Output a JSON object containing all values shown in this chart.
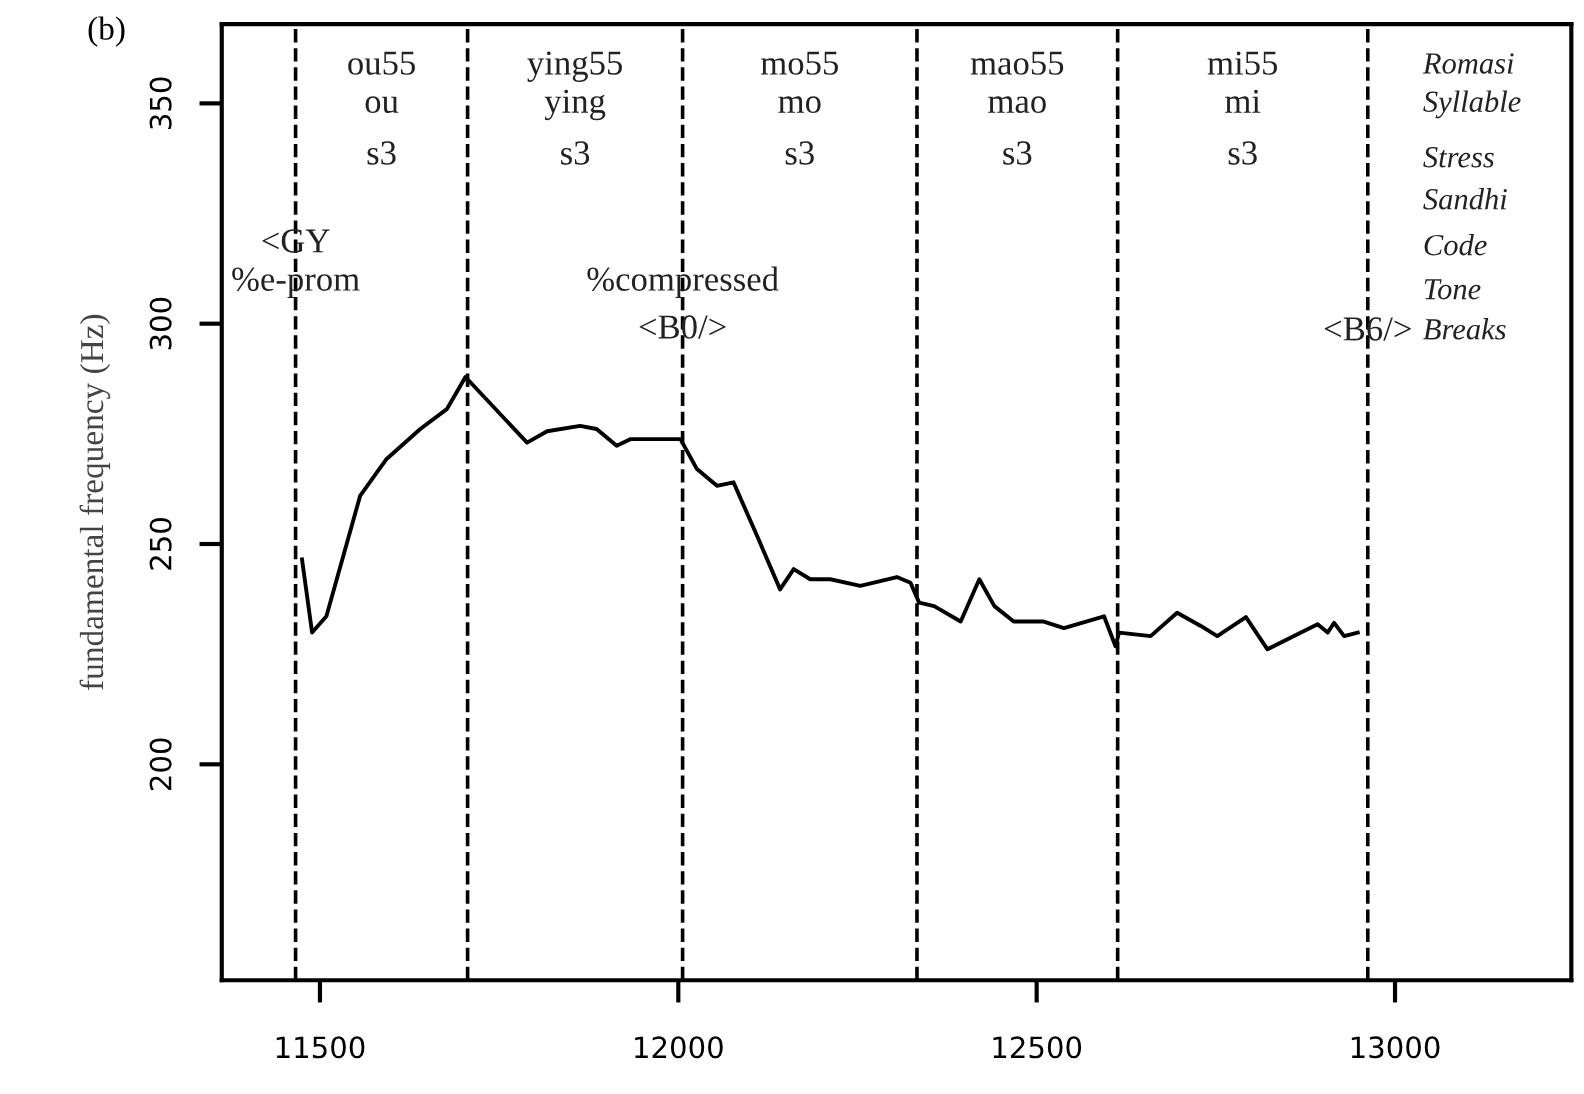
{
  "chart_data": {
    "type": "line",
    "title": "(b)",
    "ylabel": "fundamental frequency (Hz)",
    "x": [
      11475,
      11489,
      11509,
      11556,
      11593,
      11640,
      11677,
      11703,
      11789,
      11817,
      11863,
      11886,
      11914,
      11933,
      12003,
      12026,
      12054,
      12077,
      12110,
      12142,
      12161,
      12184,
      12212,
      12254,
      12305,
      12324,
      12336,
      12357,
      12394,
      12420,
      12441,
      12468,
      12510,
      12538,
      12594,
      12610,
      12615,
      12659,
      12696,
      12729,
      12752,
      12792,
      12822,
      12859,
      12892,
      12906,
      12915,
      12929,
      12948
    ],
    "series": [
      {
        "color": "#000000",
        "values": [
          246.5,
          229.9,
          233.6,
          260.9,
          269.3,
          276.1,
          280.6,
          287.9,
          273.0,
          275.6,
          276.8,
          276.1,
          272.3,
          273.8,
          273.8,
          267.0,
          263.2,
          264.0,
          251.8,
          239.7,
          244.3,
          242.0,
          242.0,
          240.5,
          242.5,
          241.2,
          236.7,
          235.9,
          232.4,
          242.0,
          235.9,
          232.4,
          232.4,
          230.9,
          233.6,
          226.8,
          229.9,
          229.1,
          234.4,
          231.4,
          229.1,
          233.4,
          226.1,
          229.1,
          231.8,
          229.9,
          232.1,
          229.1,
          229.9
        ]
      }
    ],
    "xlim": [
      11363,
      13246
    ],
    "ylim": [
      151,
      368
    ],
    "xticks": [
      11500,
      12000,
      12500,
      13000
    ],
    "yticks": [
      200,
      250,
      300,
      350
    ],
    "grid": false,
    "legend": false,
    "line_style": "solid",
    "marker": "none",
    "ref_lines": [
      {
        "axis": "x",
        "value": 11466,
        "color": "#000000",
        "line_style": "dashed"
      },
      {
        "axis": "x",
        "value": 11706,
        "color": "#000000",
        "line_style": "dashed"
      },
      {
        "axis": "x",
        "value": 12006,
        "color": "#000000",
        "line_style": "dashed"
      },
      {
        "axis": "x",
        "value": 12333,
        "color": "#000000",
        "line_style": "dashed"
      },
      {
        "axis": "x",
        "value": 12613,
        "color": "#000000",
        "line_style": "dashed"
      },
      {
        "axis": "x",
        "value": 12962,
        "color": "#000000",
        "line_style": "dashed"
      }
    ],
    "annotations": [
      "ou55",
      "ou",
      "s3",
      "ying55",
      "ying",
      "s3",
      "mo55",
      "mo",
      "s3",
      "mao55",
      "mao",
      "s3",
      "mi55",
      "mi",
      "s3",
      "<GY",
      "%e-prom",
      "%compressed",
      "<B0/>",
      "<B6/>",
      "Romasi",
      "Syllable",
      "Stress",
      "Sandhi",
      "Code",
      "Tone",
      "Breaks"
    ]
  }
}
